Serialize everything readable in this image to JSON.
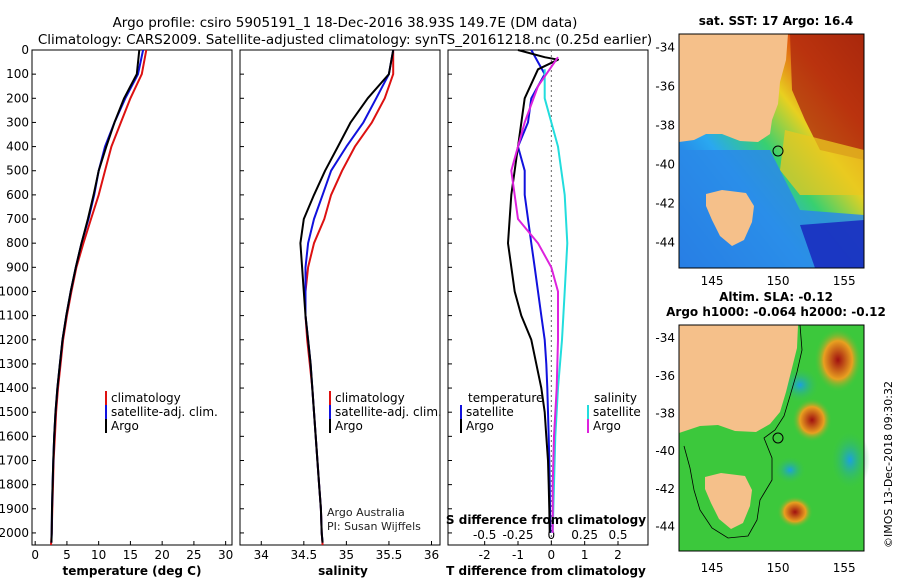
{
  "header": {
    "line1": "Argo profile: csiro 5905191_1 18-Dec-2016 38.93S 149.7E (DM data)",
    "line2": "Climatology: CARS2009. Satellite-adjusted climatology: synTS_20161218.nc (0.25d earlier)"
  },
  "credit": {
    "line1": "Argo Australia",
    "line2": "PI: Susan Wijffels"
  },
  "stamp": "©IMOS 13-Dec-2018 09:30:32",
  "maps": {
    "sst_title": "sat. SST: 17 Argo: 16.4",
    "sla_title1": "Altim. SLA: -0.12",
    "sla_title2": "Argo h1000: -0.064 h2000: -0.12",
    "lat_ticks": [
      "-34",
      "-36",
      "-38",
      "-40",
      "-42",
      "-44"
    ],
    "lon_ticks": [
      "145",
      "150",
      "155"
    ],
    "colors": {
      "land": "#f5c08a",
      "sst_sea_cold": "#2a7be0",
      "sst_sea_warm": "#b03010",
      "sla_sea": "#3cc83c",
      "float_marker": "#000000"
    }
  },
  "chart_data": [
    {
      "type": "line",
      "title": "",
      "xlabel": "temperature (deg C)",
      "ylabel": "",
      "xlim": [
        -0.5,
        31
      ],
      "ylim": [
        2050,
        0
      ],
      "xticks": [
        "0",
        "5",
        "10",
        "15",
        "20",
        "25",
        "30"
      ],
      "yticks": [
        "0",
        "100",
        "200",
        "300",
        "400",
        "500",
        "600",
        "700",
        "800",
        "900",
        "1000",
        "1100",
        "1200",
        "1300",
        "1400",
        "1500",
        "1600",
        "1700",
        "1800",
        "1900",
        "2000"
      ],
      "legend_position": "middle-right",
      "series": [
        {
          "name": "climatology",
          "color": "#dd1111",
          "points": [
            [
              17.5,
              0
            ],
            [
              16.8,
              100
            ],
            [
              15.0,
              200
            ],
            [
              13.5,
              300
            ],
            [
              12.0,
              400
            ],
            [
              11.0,
              500
            ],
            [
              10.0,
              600
            ],
            [
              8.8,
              700
            ],
            [
              7.6,
              800
            ],
            [
              6.5,
              900
            ],
            [
              5.7,
              1000
            ],
            [
              5.0,
              1100
            ],
            [
              4.4,
              1200
            ],
            [
              4.0,
              1300
            ],
            [
              3.6,
              1400
            ],
            [
              3.3,
              1500
            ],
            [
              3.1,
              1600
            ],
            [
              2.9,
              1700
            ],
            [
              2.8,
              1800
            ],
            [
              2.7,
              1900
            ],
            [
              2.6,
              2000
            ],
            [
              2.5,
              2050
            ]
          ]
        },
        {
          "name": "satellite-adj. clim.",
          "color": "#1111dd",
          "points": [
            [
              17.0,
              0
            ],
            [
              16.2,
              100
            ],
            [
              14.2,
              200
            ],
            [
              12.5,
              300
            ],
            [
              11.0,
              400
            ],
            [
              10.0,
              500
            ],
            [
              9.3,
              600
            ],
            [
              8.4,
              700
            ],
            [
              7.3,
              800
            ],
            [
              6.4,
              900
            ],
            [
              5.6,
              1000
            ],
            [
              4.9,
              1100
            ],
            [
              4.3,
              1200
            ],
            [
              3.9,
              1300
            ],
            [
              3.5,
              1400
            ],
            [
              3.2,
              1500
            ],
            [
              3.0,
              1600
            ],
            [
              2.85,
              1700
            ],
            [
              2.75,
              1800
            ],
            [
              2.65,
              1900
            ],
            [
              2.6,
              2000
            ],
            [
              2.55,
              2040
            ]
          ]
        },
        {
          "name": "Argo",
          "color": "#000000",
          "points": [
            [
              16.4,
              0
            ],
            [
              16.0,
              100
            ],
            [
              14.0,
              200
            ],
            [
              12.5,
              300
            ],
            [
              11.2,
              400
            ],
            [
              10.0,
              500
            ],
            [
              9.2,
              600
            ],
            [
              8.3,
              700
            ],
            [
              7.3,
              800
            ],
            [
              6.4,
              900
            ],
            [
              5.6,
              1000
            ],
            [
              4.9,
              1100
            ],
            [
              4.3,
              1200
            ],
            [
              3.9,
              1300
            ],
            [
              3.5,
              1400
            ],
            [
              3.2,
              1500
            ],
            [
              3.0,
              1600
            ],
            [
              2.85,
              1700
            ],
            [
              2.75,
              1800
            ],
            [
              2.65,
              1900
            ],
            [
              2.6,
              2000
            ],
            [
              2.55,
              2040
            ]
          ]
        }
      ]
    },
    {
      "type": "line",
      "title": "",
      "xlabel": "salinity",
      "ylabel": "",
      "xlim": [
        33.75,
        36.1
      ],
      "ylim": [
        2050,
        0
      ],
      "xticks": [
        "34",
        "34.5",
        "35",
        "35.5",
        "36"
      ],
      "legend_position": "middle-right",
      "series": [
        {
          "name": "climatology",
          "color": "#dd1111",
          "points": [
            [
              35.55,
              0
            ],
            [
              35.55,
              100
            ],
            [
              35.45,
              200
            ],
            [
              35.3,
              300
            ],
            [
              35.1,
              400
            ],
            [
              34.95,
              500
            ],
            [
              34.82,
              600
            ],
            [
              34.74,
              700
            ],
            [
              34.62,
              800
            ],
            [
              34.55,
              900
            ],
            [
              34.52,
              1000
            ],
            [
              34.52,
              1100
            ],
            [
              34.54,
              1200
            ],
            [
              34.57,
              1300
            ],
            [
              34.6,
              1400
            ],
            [
              34.62,
              1500
            ],
            [
              34.64,
              1600
            ],
            [
              34.66,
              1700
            ],
            [
              34.68,
              1800
            ],
            [
              34.7,
              1900
            ],
            [
              34.71,
              2000
            ],
            [
              34.72,
              2050
            ]
          ]
        },
        {
          "name": "satellite-adj. clim.",
          "color": "#1111dd",
          "points": [
            [
              35.55,
              0
            ],
            [
              35.5,
              100
            ],
            [
              35.35,
              200
            ],
            [
              35.2,
              300
            ],
            [
              35.0,
              400
            ],
            [
              34.82,
              500
            ],
            [
              34.72,
              600
            ],
            [
              34.62,
              700
            ],
            [
              34.55,
              800
            ],
            [
              34.52,
              900
            ],
            [
              34.52,
              1000
            ],
            [
              34.52,
              1100
            ],
            [
              34.55,
              1200
            ],
            [
              34.58,
              1300
            ],
            [
              34.6,
              1400
            ],
            [
              34.62,
              1500
            ],
            [
              34.64,
              1600
            ],
            [
              34.66,
              1700
            ],
            [
              34.68,
              1800
            ],
            [
              34.7,
              1900
            ],
            [
              34.71,
              2000
            ],
            [
              34.72,
              2040
            ]
          ]
        },
        {
          "name": "Argo",
          "color": "#000000",
          "points": [
            [
              35.55,
              0
            ],
            [
              35.5,
              100
            ],
            [
              35.25,
              200
            ],
            [
              35.05,
              300
            ],
            [
              34.9,
              400
            ],
            [
              34.75,
              500
            ],
            [
              34.62,
              600
            ],
            [
              34.5,
              700
            ],
            [
              34.46,
              800
            ],
            [
              34.48,
              900
            ],
            [
              34.5,
              1000
            ],
            [
              34.52,
              1100
            ],
            [
              34.55,
              1200
            ],
            [
              34.58,
              1300
            ],
            [
              34.6,
              1400
            ],
            [
              34.62,
              1500
            ],
            [
              34.64,
              1600
            ],
            [
              34.66,
              1700
            ],
            [
              34.68,
              1800
            ],
            [
              34.7,
              1900
            ],
            [
              34.71,
              2000
            ],
            [
              34.72,
              2040
            ]
          ]
        }
      ]
    },
    {
      "type": "line",
      "title": "",
      "xlabel": "T difference from climatology",
      "ylabel": "",
      "xlim": [
        -3.1,
        2.9
      ],
      "ylim": [
        2050,
        0
      ],
      "xticks": [
        "-2",
        "-1",
        "0",
        "1",
        "2"
      ],
      "secondary_xlabel": "S difference from climatology",
      "secondary_xticks": [
        "-0.5",
        "-0.25",
        "0",
        "0.25",
        "0.5"
      ],
      "secondary_xlim": [
        -0.775,
        0.725
      ],
      "legend_left_title": "temperature",
      "legend_right_title": "salinity",
      "series": [
        {
          "name": "satellite",
          "variable": "temperature",
          "color": "#1111dd",
          "points": [
            [
              -0.6,
              0
            ],
            [
              -0.4,
              50
            ],
            [
              -0.2,
              100
            ],
            [
              -0.6,
              200
            ],
            [
              -0.7,
              300
            ],
            [
              -1.0,
              400
            ],
            [
              -0.8,
              500
            ],
            [
              -0.8,
              600
            ],
            [
              -0.7,
              700
            ],
            [
              -0.6,
              800
            ],
            [
              -0.5,
              900
            ],
            [
              -0.4,
              1000
            ],
            [
              -0.3,
              1100
            ],
            [
              -0.2,
              1200
            ],
            [
              -0.15,
              1300
            ],
            [
              -0.12,
              1400
            ],
            [
              -0.1,
              1500
            ],
            [
              -0.08,
              1600
            ],
            [
              -0.06,
              1700
            ],
            [
              -0.05,
              1800
            ],
            [
              -0.04,
              1900
            ],
            [
              -0.03,
              2000
            ]
          ]
        },
        {
          "name": "Argo",
          "variable": "temperature",
          "color": "#000000",
          "points": [
            [
              -1.0,
              0
            ],
            [
              -0.2,
              30
            ],
            [
              0.2,
              40
            ],
            [
              -0.4,
              80
            ],
            [
              -0.8,
              200
            ],
            [
              -1.0,
              400
            ],
            [
              -1.2,
              600
            ],
            [
              -1.3,
              800
            ],
            [
              -1.1,
              1000
            ],
            [
              -0.9,
              1100
            ],
            [
              -0.6,
              1200
            ],
            [
              -0.45,
              1300
            ],
            [
              -0.3,
              1400
            ],
            [
              -0.2,
              1500
            ],
            [
              -0.15,
              1600
            ],
            [
              -0.1,
              1700
            ],
            [
              -0.08,
              1800
            ],
            [
              -0.06,
              1900
            ],
            [
              -0.05,
              2000
            ]
          ]
        },
        {
          "name": "satellite",
          "variable": "salinity",
          "color": "#22dddd",
          "points": [
            [
              -0.05,
              80
            ],
            [
              -0.05,
              200
            ],
            [
              0.05,
              400
            ],
            [
              0.1,
              600
            ],
            [
              0.12,
              800
            ],
            [
              0.1,
              1000
            ],
            [
              0.08,
              1200
            ],
            [
              0.05,
              1400
            ],
            [
              0.03,
              1600
            ],
            [
              0.02,
              1800
            ],
            [
              0.01,
              2000
            ]
          ]
        },
        {
          "name": "Argo",
          "variable": "salinity",
          "color": "#dd22dd",
          "points": [
            [
              0.05,
              30
            ],
            [
              -0.1,
              150
            ],
            [
              -0.2,
              300
            ],
            [
              -0.3,
              500
            ],
            [
              -0.25,
              700
            ],
            [
              -0.1,
              800
            ],
            [
              0.0,
              900
            ],
            [
              0.05,
              1000
            ],
            [
              0.05,
              1200
            ],
            [
              0.04,
              1400
            ],
            [
              0.02,
              1600
            ],
            [
              0.01,
              1800
            ],
            [
              0.01,
              2000
            ]
          ]
        }
      ]
    }
  ]
}
